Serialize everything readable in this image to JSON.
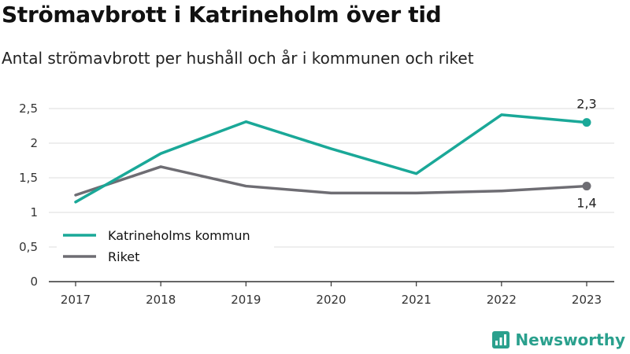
{
  "title": "Strömavbrott i Katrineholm över tid",
  "subtitle": "Antal strömavbrott per hushåll och år i kommunen och riket",
  "brand": "Newsworthy",
  "colors": {
    "kommun": "#1aa898",
    "riket": "#6e6d73",
    "grid": "#dddddd",
    "brand": "#2aa08d"
  },
  "chart_data": {
    "type": "line",
    "x": [
      "2017",
      "2018",
      "2019",
      "2020",
      "2021",
      "2022",
      "2023"
    ],
    "yticks": [
      "0",
      "0,5",
      "1",
      "1,5",
      "2",
      "2,5"
    ],
    "ylim": [
      0,
      2.5
    ],
    "grid": true,
    "legend_position": "bottom-left",
    "series": [
      {
        "name": "Katrineholms kommun",
        "values": [
          1.15,
          1.85,
          2.31,
          1.92,
          1.56,
          2.41,
          2.3
        ],
        "end_label": "2,3"
      },
      {
        "name": "Riket",
        "values": [
          1.25,
          1.66,
          1.38,
          1.28,
          1.28,
          1.31,
          1.38
        ],
        "end_label": "1,4"
      }
    ]
  }
}
